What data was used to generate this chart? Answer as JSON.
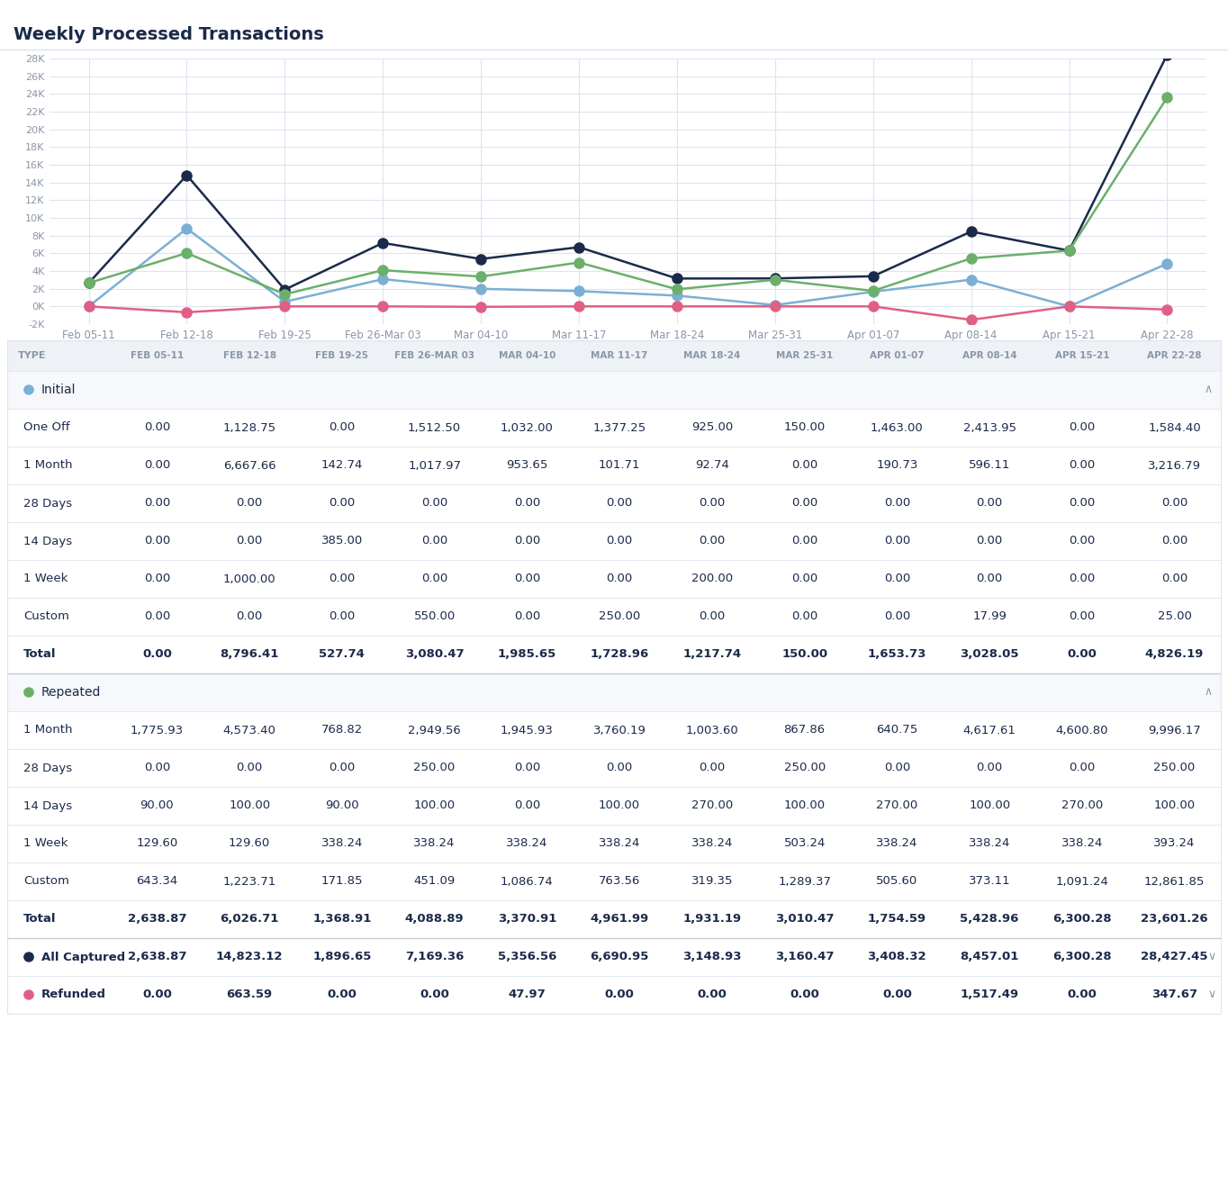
{
  "title": "Weekly Processed Transactions",
  "weeks": [
    "Feb 05-11",
    "Feb 12-18",
    "Feb 19-25",
    "Feb 26-Mar 03",
    "Mar 04-10",
    "Mar 11-17",
    "Mar 18-24",
    "Mar 25-31",
    "Apr 01-07",
    "Apr 08-14",
    "Apr 15-21",
    "Apr 22-28"
  ],
  "weeks_header": [
    "FEB 05-11",
    "FEB 12-18",
    "FEB 19-25",
    "FEB 26-MAR 03",
    "MAR 04-10",
    "MAR 11-17",
    "MAR 18-24",
    "MAR 25-31",
    "APR 01-07",
    "APR 08-14",
    "APR 15-21",
    "APR 22-28"
  ],
  "all_captured": [
    2638.87,
    14823.12,
    1896.65,
    7169.36,
    5356.56,
    6690.95,
    3148.93,
    3160.47,
    3408.32,
    8457.01,
    6300.28,
    28427.45
  ],
  "initial_total": [
    0.0,
    8796.41,
    527.74,
    3080.47,
    1985.65,
    1728.96,
    1217.74,
    150.0,
    1653.73,
    3028.05,
    0.0,
    4826.19
  ],
  "repeated_total": [
    2638.87,
    6026.71,
    1368.91,
    4088.89,
    3370.91,
    4961.99,
    1931.19,
    3010.47,
    1754.59,
    5428.96,
    6300.28,
    23601.26
  ],
  "refunded": [
    0.0,
    663.59,
    0.0,
    0.0,
    47.97,
    0.0,
    0.0,
    0.0,
    0.0,
    1517.49,
    0.0,
    347.67
  ],
  "refunded_display": [
    0.0,
    -663.59,
    0.0,
    0.0,
    -47.97,
    0.0,
    0.0,
    0.0,
    0.0,
    -1517.49,
    0.0,
    -347.67
  ],
  "color_dark_navy": "#1b2a4a",
  "color_light_blue": "#7bafd4",
  "color_green": "#6baf6b",
  "color_pink": "#e05f85",
  "bg_color": "#ffffff",
  "grid_color": "#dde4ee",
  "header_bg": "#eef1f6",
  "section_header_bg": "#f6f8fb",
  "text_dark": "#1b2a4a",
  "text_light": "#8a96a8",
  "sep_light": "#dde4ee",
  "sep_strong": "#c5ccd8",
  "initial_section": {
    "label": "Initial",
    "color": "#7bafd4",
    "rows": [
      {
        "name": "One Off",
        "values": [
          0.0,
          1128.75,
          0.0,
          1512.5,
          1032.0,
          1377.25,
          925.0,
          150.0,
          1463.0,
          2413.95,
          0.0,
          1584.4
        ]
      },
      {
        "name": "1 Month",
        "values": [
          0.0,
          6667.66,
          142.74,
          1017.97,
          953.65,
          101.71,
          92.74,
          0.0,
          190.73,
          596.11,
          0.0,
          3216.79
        ]
      },
      {
        "name": "28 Days",
        "values": [
          0.0,
          0.0,
          0.0,
          0.0,
          0.0,
          0.0,
          0.0,
          0.0,
          0.0,
          0.0,
          0.0,
          0.0
        ]
      },
      {
        "name": "14 Days",
        "values": [
          0.0,
          0.0,
          385.0,
          0.0,
          0.0,
          0.0,
          0.0,
          0.0,
          0.0,
          0.0,
          0.0,
          0.0
        ]
      },
      {
        "name": "1 Week",
        "values": [
          0.0,
          1000.0,
          0.0,
          0.0,
          0.0,
          0.0,
          200.0,
          0.0,
          0.0,
          0.0,
          0.0,
          0.0
        ]
      },
      {
        "name": "Custom",
        "values": [
          0.0,
          0.0,
          0.0,
          550.0,
          0.0,
          250.0,
          0.0,
          0.0,
          0.0,
          17.99,
          0.0,
          25.0
        ]
      }
    ],
    "total": [
      0.0,
      8796.41,
      527.74,
      3080.47,
      1985.65,
      1728.96,
      1217.74,
      150.0,
      1653.73,
      3028.05,
      0.0,
      4826.19
    ]
  },
  "repeated_section": {
    "label": "Repeated",
    "color": "#6baf6b",
    "rows": [
      {
        "name": "1 Month",
        "values": [
          1775.93,
          4573.4,
          768.82,
          2949.56,
          1945.93,
          3760.19,
          1003.6,
          867.86,
          640.75,
          4617.61,
          4600.8,
          9996.17
        ]
      },
      {
        "name": "28 Days",
        "values": [
          0.0,
          0.0,
          0.0,
          250.0,
          0.0,
          0.0,
          0.0,
          250.0,
          0.0,
          0.0,
          0.0,
          250.0
        ]
      },
      {
        "name": "14 Days",
        "values": [
          90.0,
          100.0,
          90.0,
          100.0,
          0.0,
          100.0,
          270.0,
          100.0,
          270.0,
          100.0,
          270.0,
          100.0
        ]
      },
      {
        "name": "1 Week",
        "values": [
          129.6,
          129.6,
          338.24,
          338.24,
          338.24,
          338.24,
          338.24,
          503.24,
          338.24,
          338.24,
          338.24,
          393.24
        ]
      },
      {
        "name": "Custom",
        "values": [
          643.34,
          1223.71,
          171.85,
          451.09,
          1086.74,
          763.56,
          319.35,
          1289.37,
          505.6,
          373.11,
          1091.24,
          12861.85
        ]
      }
    ],
    "total": [
      2638.87,
      6026.71,
      1368.91,
      4088.89,
      3370.91,
      4961.99,
      1931.19,
      3010.47,
      1754.59,
      5428.96,
      6300.28,
      23601.26
    ]
  },
  "all_captured_label": "All Captured",
  "refunded_label": "Refunded",
  "ylim": [
    -2000,
    28000
  ],
  "yticks": [
    -2000,
    0,
    2000,
    4000,
    6000,
    8000,
    10000,
    12000,
    14000,
    16000,
    18000,
    20000,
    22000,
    24000,
    26000,
    28000
  ],
  "ytick_labels": [
    "-2K",
    "0K",
    "2K",
    "4K",
    "6K",
    "8K",
    "10K",
    "12K",
    "14K",
    "16K",
    "18K",
    "20K",
    "22K",
    "24K",
    "26K",
    "28K"
  ]
}
